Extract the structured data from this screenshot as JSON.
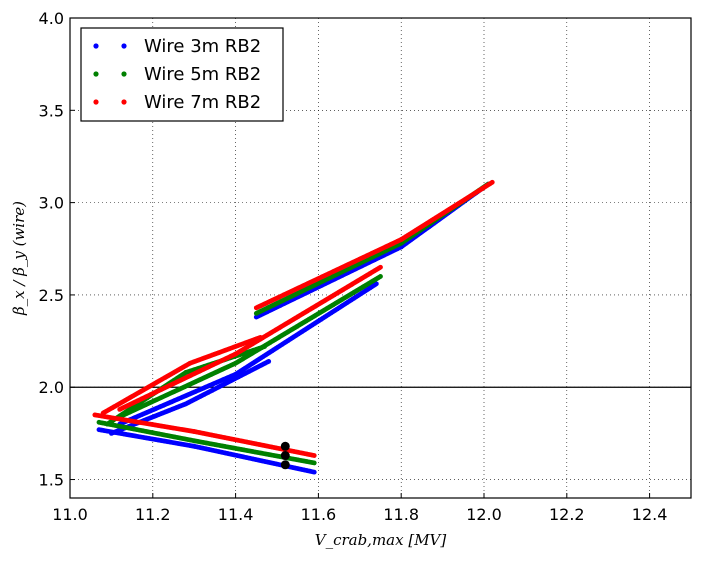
{
  "chart_data": {
    "type": "scatter",
    "title": "",
    "xlabel": "V_crab,max [MV]",
    "ylabel": "β_x / β_y (wire)",
    "xlim": [
      11.0,
      12.5
    ],
    "ylim": [
      1.4,
      4.0
    ],
    "xticks": [
      "11.0",
      "11.2",
      "11.4",
      "11.6",
      "11.8",
      "12.0",
      "12.2",
      "12.4"
    ],
    "yticks": [
      "1.5",
      "2.0",
      "2.5",
      "3.0",
      "3.5",
      "4.0"
    ],
    "grid": true,
    "legend_position": "top-left",
    "reference_line_y": 2.0,
    "series": [
      {
        "name": "Wire 3m RB2",
        "color": "#0000ff",
        "segments": [
          [
            [
              11.07,
              1.77
            ],
            [
              11.3,
              1.68
            ],
            [
              11.59,
              1.54
            ]
          ],
          [
            [
              11.1,
              1.75
            ],
            [
              11.28,
              1.91
            ],
            [
              11.48,
              2.14
            ]
          ],
          [
            [
              11.12,
              1.8
            ],
            [
              11.4,
              2.07
            ],
            [
              11.74,
              2.56
            ]
          ],
          [
            [
              11.45,
              2.38
            ],
            [
              11.8,
              2.76
            ],
            [
              12.01,
              3.1
            ]
          ]
        ]
      },
      {
        "name": "Wire 5m RB2",
        "color": "#008000",
        "segments": [
          [
            [
              11.07,
              1.81
            ],
            [
              11.3,
              1.71
            ],
            [
              11.59,
              1.59
            ]
          ],
          [
            [
              11.09,
              1.8
            ],
            [
              11.28,
              2.08
            ],
            [
              11.47,
              2.22
            ]
          ],
          [
            [
              11.12,
              1.84
            ],
            [
              11.4,
              2.13
            ],
            [
              11.75,
              2.6
            ]
          ],
          [
            [
              11.45,
              2.4
            ],
            [
              11.8,
              2.78
            ],
            [
              12.01,
              3.1
            ]
          ]
        ]
      },
      {
        "name": "Wire 7m RB2",
        "color": "#ff0000",
        "segments": [
          [
            [
              11.06,
              1.85
            ],
            [
              11.3,
              1.76
            ],
            [
              11.59,
              1.63
            ]
          ],
          [
            [
              11.08,
              1.86
            ],
            [
              11.29,
              2.13
            ],
            [
              11.46,
              2.27
            ]
          ],
          [
            [
              11.12,
              1.88
            ],
            [
              11.4,
              2.18
            ],
            [
              11.75,
              2.65
            ]
          ],
          [
            [
              11.45,
              2.43
            ],
            [
              11.8,
              2.8
            ],
            [
              12.02,
              3.11
            ]
          ]
        ]
      }
    ],
    "highlight_points": [
      [
        11.52,
        1.68
      ],
      [
        11.52,
        1.63
      ],
      [
        11.52,
        1.58
      ]
    ]
  }
}
